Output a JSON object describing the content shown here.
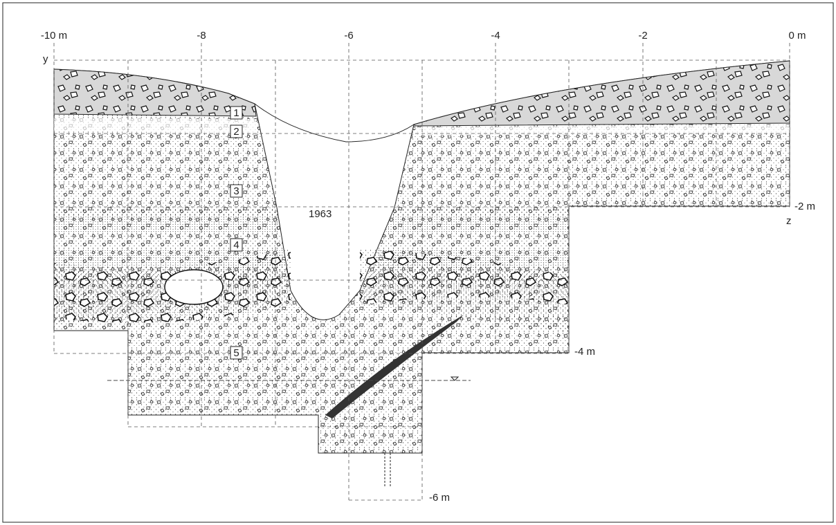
{
  "axis": {
    "x_labels": [
      "-10 m",
      "-8",
      "-6",
      "-4",
      "-2",
      "0 m"
    ],
    "y_label": "y",
    "z_label": "z"
  },
  "depth_labels": [
    "-2 m",
    "-4 m",
    "-6 m"
  ],
  "trench_label": "1963",
  "layers": [
    "1",
    "2",
    "3",
    "4",
    "5"
  ]
}
